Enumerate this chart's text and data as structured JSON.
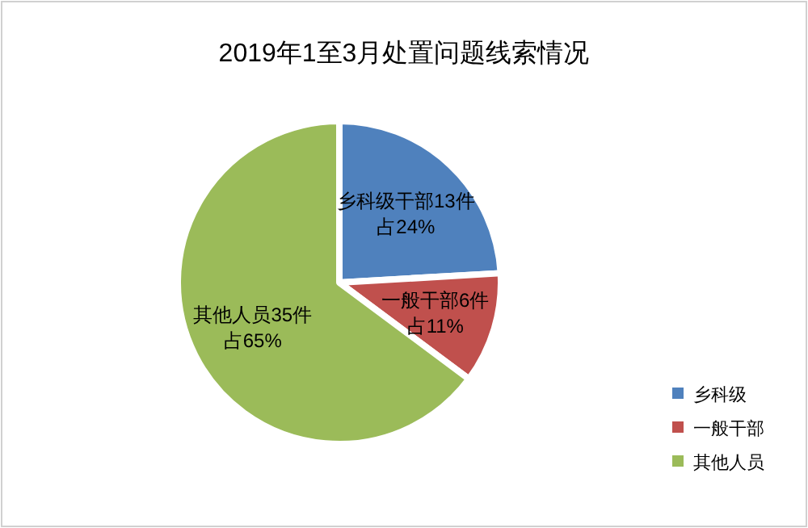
{
  "chart_data": {
    "type": "pie",
    "title": "2019年1至3月处置问题线索情况",
    "categories": [
      "乡科级",
      "一般干部",
      "其他人员"
    ],
    "values": [
      13,
      6,
      35
    ],
    "colors": [
      "#4f81bd",
      "#c0504d",
      "#9bbb59"
    ],
    "value_labels": [
      "乡科级干部13件占24%",
      "一般干部6件占11%",
      "其他人员35件占65%"
    ],
    "legend": "bottom right"
  }
}
